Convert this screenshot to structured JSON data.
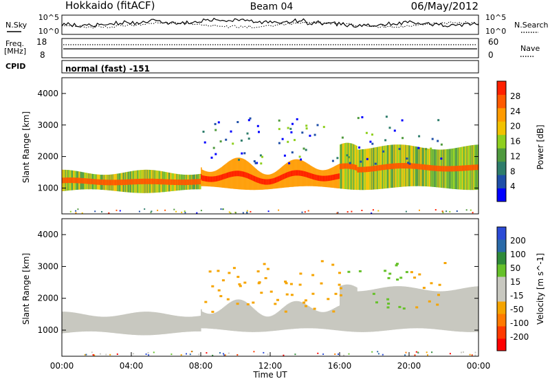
{
  "header": {
    "station": "Hokkaido (fitACF)",
    "beam": "Beam 04",
    "date": "06/May/2012"
  },
  "top_strip": {
    "left_label": "N.Sky",
    "right_label": "N.Search",
    "left_ticks": [
      "10^5",
      "10^0"
    ],
    "right_ticks": [
      "10^5",
      "10^0"
    ]
  },
  "freq_strip": {
    "left_label_1": "Freq.",
    "left_label_2": "[MHz]",
    "left_ticks": [
      "18",
      "8"
    ],
    "right_label": "Nave",
    "right_ticks": [
      "60",
      "0"
    ]
  },
  "cpid": {
    "label": "CPID",
    "value": "normal (fast) -151"
  },
  "colors": {
    "power_scale": [
      "#0000ff",
      "#1f4fa8",
      "#2e7d6b",
      "#4f9a3e",
      "#8fcf1f",
      "#f2c200",
      "#ff9b00",
      "#ff5a00",
      "#ff2000"
    ],
    "velocity_scale": [
      "#2b4bd6",
      "#2a6aa8",
      "#2f8b3a",
      "#66c12a",
      "#c8c8c0",
      "#c8c8c0",
      "#f5a400",
      "#ff7a00",
      "#ff3a00",
      "#ff0000"
    ]
  },
  "chart_data": [
    {
      "type": "heatmap",
      "panel": "power",
      "xlabel": "",
      "ylabel": "Slant Range [km]",
      "xlim": [
        "00:00",
        "00:00"
      ],
      "ylim": [
        180,
        4500
      ],
      "yticks": [
        "1000",
        "2000",
        "3000",
        "4000"
      ],
      "colorbar_label": "Power [dB]",
      "colorbar_ticks": [
        "4",
        "8",
        "12",
        "16",
        "20",
        "24",
        "28"
      ],
      "bands": [
        {
          "t_start": 0.0,
          "t_end": 8.0,
          "range_low": 900,
          "range_high": 1500,
          "level": "medium"
        },
        {
          "t_start": 8.0,
          "t_end": 16.0,
          "range_low": 1000,
          "range_high": 1700,
          "level": "high"
        },
        {
          "t_start": 16.0,
          "t_end": 24.0,
          "range_low": 1000,
          "range_high": 2300,
          "level": "medium"
        }
      ]
    },
    {
      "type": "heatmap",
      "panel": "velocity",
      "xlabel": "Time UT",
      "ylabel": "Slant Range [km]",
      "xticks": [
        "00:00",
        "04:00",
        "08:00",
        "12:00",
        "16:00",
        "20:00",
        "00:00"
      ],
      "ylim": [
        180,
        4500
      ],
      "yticks": [
        "1000",
        "2000",
        "3000",
        "4000"
      ],
      "colorbar_label": "Velocity [m s^-1]",
      "colorbar_ticks": [
        "200",
        "100",
        "50",
        "15",
        "-15",
        "-50",
        "-100",
        "-200"
      ]
    }
  ]
}
